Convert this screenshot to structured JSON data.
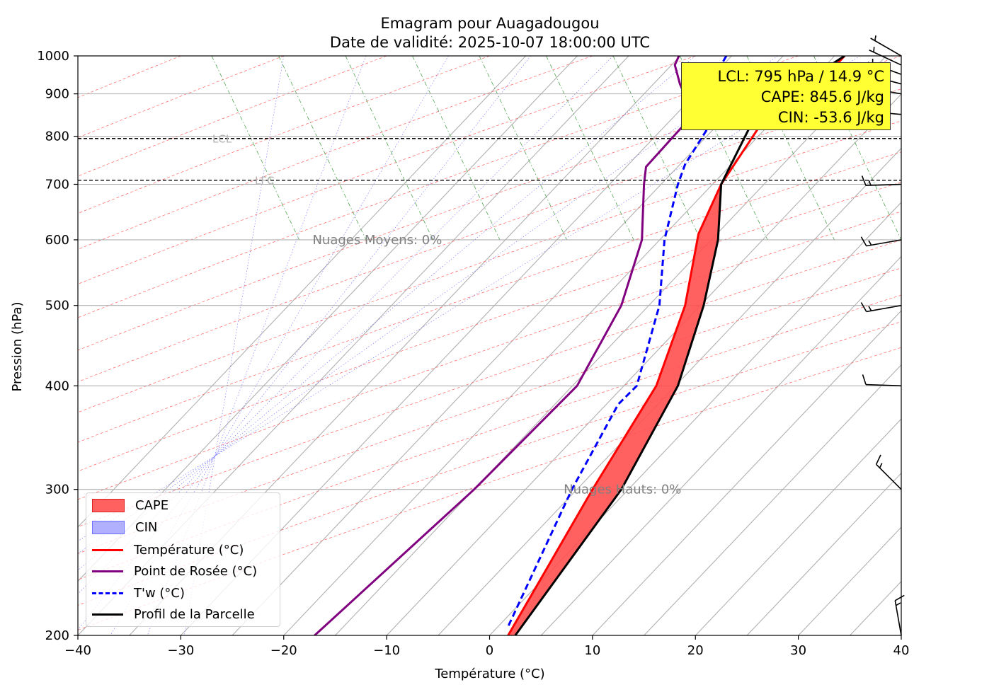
{
  "chart_data": {
    "type": "line",
    "title": "Emagram pour Auagadougou",
    "subtitle": "Date de validité: 2025-10-07 18:00:00 UTC",
    "xlabel": "Température (°C)",
    "ylabel": "Pression (hPa)",
    "xlim": [
      -40,
      40
    ],
    "ylim": [
      1000,
      200
    ],
    "x_ticks": [
      "−40",
      "−30",
      "−20",
      "−10",
      "0",
      "10",
      "20",
      "30",
      "40"
    ],
    "x_tick_values": [
      -40,
      -30,
      -20,
      -10,
      0,
      10,
      20,
      30,
      40
    ],
    "y_ticks": [
      "200",
      "300",
      "400",
      "500",
      "600",
      "700",
      "800",
      "900",
      "1000"
    ],
    "y_tick_values": [
      200,
      300,
      400,
      500,
      600,
      700,
      800,
      900,
      1000
    ],
    "grid": true,
    "legend_position": "lower-left",
    "legend": {
      "cape": "CAPE",
      "cin": "CIN",
      "temperature": "Température (°C)",
      "dewpoint": "Point de Rosée (°C)",
      "wetbulb": "T'w (°C)",
      "parcel": "Profil de la Parcelle"
    },
    "series": [
      {
        "name": "Température (°C)",
        "color": "#ff0000",
        "points": [
          [
            34.5,
            1000
          ],
          [
            33.5,
            970
          ],
          [
            27,
            850
          ],
          [
            22.5,
            700
          ],
          [
            20.3,
            610
          ],
          [
            19,
            500
          ],
          [
            16.2,
            400
          ],
          [
            10,
            300
          ],
          [
            1.8,
            200
          ]
        ]
      },
      {
        "name": "Point de Rosée (°C)",
        "color": "#800080",
        "points": [
          [
            18.4,
            1000
          ],
          [
            18,
            975
          ],
          [
            18.5,
            925
          ],
          [
            19.8,
            850
          ],
          [
            15.2,
            735
          ],
          [
            15,
            700
          ],
          [
            14.8,
            600
          ],
          [
            12.8,
            500
          ],
          [
            8.5,
            400
          ],
          [
            -1.5,
            300
          ],
          [
            -17,
            200
          ]
        ]
      },
      {
        "name": "T'w (°C)",
        "color": "#0000ff",
        "points": [
          [
            23,
            1000
          ],
          [
            22.5,
            975
          ],
          [
            22.3,
            925
          ],
          [
            22.3,
            860
          ],
          [
            19,
            740
          ],
          [
            18.3,
            700
          ],
          [
            17,
            600
          ],
          [
            16.5,
            500
          ],
          [
            14.3,
            400
          ],
          [
            12.5,
            380
          ],
          [
            8,
            300
          ],
          [
            1.8,
            205
          ]
        ]
      },
      {
        "name": "Profil de la Parcelle",
        "color": "#000000",
        "points": [
          [
            34.5,
            1000
          ],
          [
            26,
            855
          ],
          [
            22.5,
            700
          ],
          [
            22.2,
            600
          ],
          [
            20.8,
            500
          ],
          [
            18.3,
            400
          ],
          [
            12.8,
            300
          ],
          [
            2.5,
            200
          ]
        ]
      }
    ],
    "cin_area": [
      [
        34.5,
        1000
      ],
      [
        33.5,
        970
      ],
      [
        27,
        850
      ],
      [
        26.5,
        850
      ],
      [
        26,
        855
      ]
    ],
    "cape_area": [
      [
        22.5,
        700
      ],
      [
        20.3,
        610
      ],
      [
        19,
        500
      ],
      [
        16.2,
        400
      ],
      [
        10,
        300
      ],
      [
        1.8,
        200
      ],
      [
        2.5,
        200
      ],
      [
        12.8,
        300
      ],
      [
        18.3,
        400
      ],
      [
        20.8,
        500
      ],
      [
        22.2,
        600
      ]
    ],
    "lfc": {
      "pressure": 708,
      "label": "LFC"
    },
    "lcl": {
      "pressure": 795,
      "label": "LCL"
    },
    "cloud_labels": [
      {
        "text": "Nuages Hauts: 0%",
        "temp": 7.2,
        "pressure": 300
      },
      {
        "text": "Nuages Moyens: 0%",
        "temp": -17.2,
        "pressure": 600
      }
    ],
    "info_box": [
      "LCL: 795 hPa / 14.9 °C",
      "CAPE: 845.6 J/kg",
      "CIN: -53.6 J/kg"
    ],
    "wind_barbs": [
      {
        "pressure": 200,
        "direction": 350,
        "knots": 15
      },
      {
        "pressure": 300,
        "direction": 315,
        "knots": 15
      },
      {
        "pressure": 400,
        "direction": 272,
        "knots": 10
      },
      {
        "pressure": 500,
        "direction": 260,
        "knots": 15
      },
      {
        "pressure": 600,
        "direction": 260,
        "knots": 15
      },
      {
        "pressure": 700,
        "direction": 268,
        "knots": 15
      },
      {
        "pressure": 850,
        "direction": 275,
        "knots": 10
      },
      {
        "pressure": 900,
        "direction": 280,
        "knots": 10
      },
      {
        "pressure": 925,
        "direction": 285,
        "knots": 5
      },
      {
        "pressure": 950,
        "direction": 290,
        "knots": 5
      },
      {
        "pressure": 975,
        "direction": 295,
        "knots": 5
      },
      {
        "pressure": 1000,
        "direction": 300,
        "knots": 5
      }
    ]
  }
}
